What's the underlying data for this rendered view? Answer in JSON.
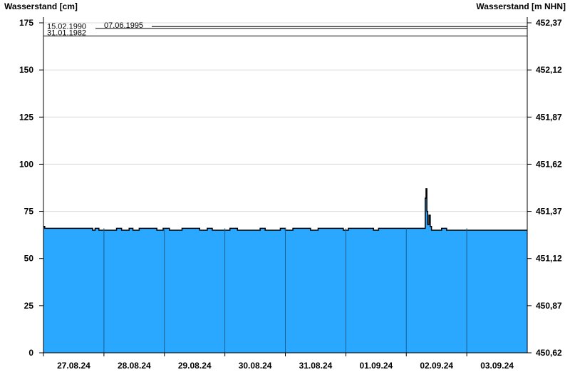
{
  "chart_data": {
    "type": "area",
    "ylabel_left": "Wasserstand [cm]",
    "ylabel_right": "Wasserstand [m NHN]",
    "ylim": [
      0,
      175
    ],
    "yticks_left": [
      "0",
      "25",
      "50",
      "75",
      "100",
      "125",
      "150",
      "175"
    ],
    "yticks_right": [
      "450,62",
      "450,87",
      "451,12",
      "451,37",
      "451,62",
      "451,87",
      "452,12",
      "452,37"
    ],
    "xlim": [
      "2024-08-27T00:00",
      "2024-09-04T00:00"
    ],
    "xtick_labels": [
      "27.08.24",
      "28.08.24",
      "29.08.24",
      "30.08.24",
      "31.08.24",
      "01.09.24",
      "02.09.24",
      "03.09.24"
    ],
    "grid": true,
    "fill_color": "#2aa8ff",
    "reference_lines": [
      {
        "label": "15.02.1990",
        "value": 173
      },
      {
        "label": "07.06.1995",
        "value": 172
      },
      {
        "label": "31.01.1982",
        "value": 168
      }
    ],
    "series": [
      {
        "points": [
          [
            "2024-08-27T00:00",
            67
          ],
          [
            "2024-08-27T00:30",
            66
          ],
          [
            "2024-08-27T19:30",
            65
          ],
          [
            "2024-08-27T20:30",
            66
          ],
          [
            "2024-08-27T22:00",
            65
          ],
          [
            "2024-08-28T05:00",
            66
          ],
          [
            "2024-08-28T07:00",
            65
          ],
          [
            "2024-08-28T10:00",
            66
          ],
          [
            "2024-08-28T11:30",
            65
          ],
          [
            "2024-08-28T14:00",
            66
          ],
          [
            "2024-08-28T21:00",
            65
          ],
          [
            "2024-08-28T23:30",
            66
          ],
          [
            "2024-08-29T02:00",
            65
          ],
          [
            "2024-08-29T07:00",
            66
          ],
          [
            "2024-08-29T14:00",
            65
          ],
          [
            "2024-08-29T17:00",
            66
          ],
          [
            "2024-08-29T19:00",
            65
          ],
          [
            "2024-08-30T02:00",
            66
          ],
          [
            "2024-08-30T05:00",
            65
          ],
          [
            "2024-08-30T14:00",
            66
          ],
          [
            "2024-08-30T16:00",
            65
          ],
          [
            "2024-08-30T22:00",
            66
          ],
          [
            "2024-08-31T00:00",
            65
          ],
          [
            "2024-08-31T03:00",
            66
          ],
          [
            "2024-08-31T10:00",
            65
          ],
          [
            "2024-08-31T13:00",
            66
          ],
          [
            "2024-08-31T23:00",
            65
          ],
          [
            "2024-09-01T01:00",
            66
          ],
          [
            "2024-09-01T11:00",
            65
          ],
          [
            "2024-09-01T13:00",
            66
          ],
          [
            "2024-09-02T07:00",
            66
          ],
          [
            "2024-09-02T07:30",
            82
          ],
          [
            "2024-09-02T07:50",
            87
          ],
          [
            "2024-09-02T08:10",
            75
          ],
          [
            "2024-09-02T08:30",
            68
          ],
          [
            "2024-09-02T09:00",
            73
          ],
          [
            "2024-09-02T09:30",
            67
          ],
          [
            "2024-09-02T10:00",
            65
          ],
          [
            "2024-09-02T14:00",
            66
          ],
          [
            "2024-09-02T16:00",
            65
          ],
          [
            "2024-09-04T00:00",
            65
          ]
        ]
      }
    ]
  }
}
